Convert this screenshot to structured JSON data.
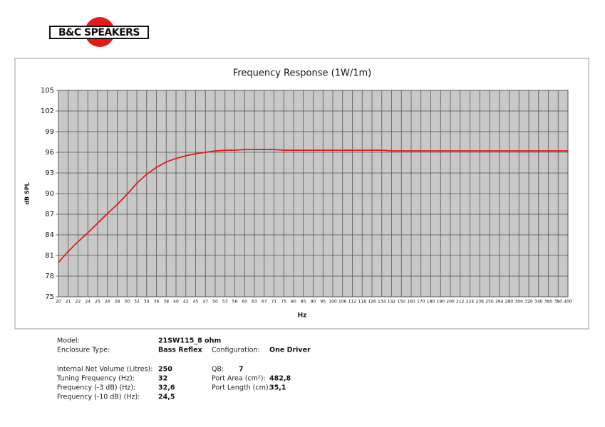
{
  "logo": "B&C SPEAKERS",
  "chart_data": {
    "type": "line",
    "title": "Frequency Response (1W/1m)",
    "x_label": "Hz",
    "y_label": "dB SPL",
    "categories": [
      "20",
      "21",
      "22",
      "24",
      "25",
      "26",
      "28",
      "30",
      "32",
      "34",
      "36",
      "38",
      "40",
      "42",
      "45",
      "47",
      "50",
      "53",
      "56",
      "60",
      "63",
      "67",
      "71",
      "75",
      "80",
      "85",
      "90",
      "95",
      "100",
      "106",
      "112",
      "118",
      "126",
      "134",
      "142",
      "150",
      "160",
      "170",
      "180",
      "190",
      "200",
      "212",
      "224",
      "236",
      "250",
      "264",
      "280",
      "300",
      "320",
      "340",
      "360",
      "380",
      "400"
    ],
    "series": [
      {
        "name": "21SW115_8 ohm",
        "color": "#e41b17",
        "values": [
          80.0,
          81.6,
          83.0,
          84.3,
          85.7,
          87.1,
          88.4,
          89.9,
          91.5,
          92.8,
          93.8,
          94.6,
          95.1,
          95.5,
          95.8,
          96.0,
          96.2,
          96.3,
          96.3,
          96.4,
          96.4,
          96.4,
          96.4,
          96.3,
          96.3,
          96.3,
          96.3,
          96.3,
          96.3,
          96.3,
          96.3,
          96.3,
          96.3,
          96.3,
          96.2,
          96.2,
          96.2,
          96.2,
          96.2,
          96.2,
          96.2,
          96.2,
          96.2,
          96.2,
          96.2,
          96.2,
          96.2,
          96.2,
          96.2,
          96.2,
          96.2,
          96.2,
          96.2
        ]
      }
    ],
    "ylim": [
      75,
      105
    ],
    "yticks": [
      75,
      78,
      81,
      84,
      87,
      90,
      93,
      96,
      99,
      102,
      105
    ],
    "grid": true
  },
  "specs": [
    {
      "label": "Model:",
      "value": "21SW115_8 ohm"
    },
    {
      "label": "Enclosure Type:",
      "value": "Bass Reflex"
    },
    {
      "label": "Configuration:",
      "value": "One Driver"
    },
    {
      "label": "Internal Net Volume (Litres):",
      "value": "250"
    },
    {
      "label": "QB:",
      "value": "7"
    },
    {
      "label": "Tuning Frequency (Hz):",
      "value": "32"
    },
    {
      "label": "Port Area (cm²):",
      "value": "482,8"
    },
    {
      "label": "Frequency (-3 dB) (Hz):",
      "value": "32,6"
    },
    {
      "label": "Port Length (cm):",
      "value": "35,1"
    },
    {
      "label": "Frequency (-10 dB) (Hz):",
      "value": "24,5"
    }
  ]
}
